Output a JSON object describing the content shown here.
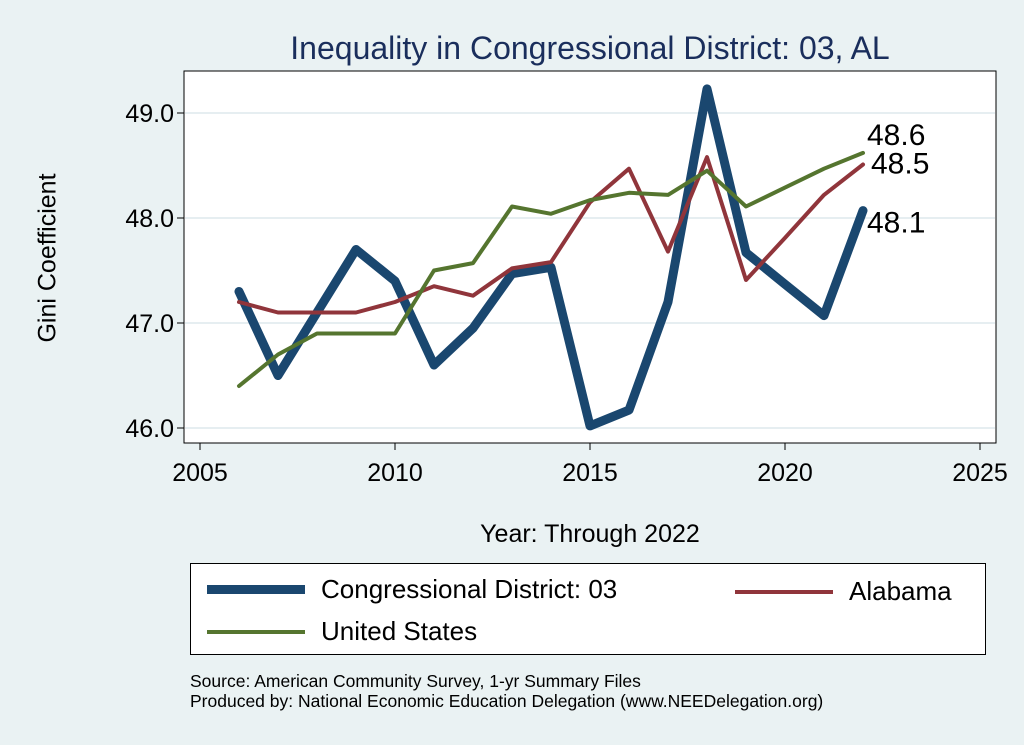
{
  "chart_data": {
    "type": "line",
    "title": "Inequality in Congressional District:  03, AL",
    "xlabel": "Year: Through 2022",
    "ylabel": "Gini Coefficient",
    "xlim": [
      2005,
      2025
    ],
    "ylim": [
      46.0,
      49.5
    ],
    "xticks": [
      2005,
      2010,
      2015,
      2020,
      2025
    ],
    "yticks": [
      46.0,
      47.0,
      48.0,
      49.0
    ],
    "xtick_labels": [
      "2005",
      "2010",
      "2015",
      "2020",
      "2025"
    ],
    "ytick_labels": [
      "46.0",
      "47.0",
      "48.0",
      "49.0"
    ],
    "grid": "horizontal",
    "legend_position": "bottom",
    "x": [
      2006,
      2007,
      2008,
      2009,
      2010,
      2011,
      2012,
      2013,
      2014,
      2015,
      2016,
      2017,
      2018,
      2019,
      2020,
      2021,
      2022
    ],
    "series": [
      {
        "name": "Congressional District:  03",
        "color": "#1a476f",
        "width": 9,
        "values": [
          47.3,
          46.5,
          47.1,
          47.7,
          47.4,
          46.6,
          46.95,
          47.47,
          47.53,
          46.02,
          46.17,
          47.2,
          49.23,
          47.67,
          47.37,
          47.07,
          48.07
        ],
        "end_label": "48.1"
      },
      {
        "name": "Alabama",
        "color": "#90353b",
        "width": 4,
        "values": [
          47.2,
          47.1,
          47.1,
          47.1,
          47.2,
          47.35,
          47.26,
          47.52,
          47.58,
          48.15,
          48.47,
          47.68,
          48.58,
          47.41,
          47.81,
          48.22,
          48.51
        ],
        "end_label": "48.5"
      },
      {
        "name": "United States",
        "color": "#55752f",
        "width": 4,
        "values": [
          46.4,
          46.7,
          46.9,
          46.9,
          46.9,
          47.5,
          47.57,
          48.11,
          48.04,
          48.17,
          48.24,
          48.22,
          48.45,
          48.11,
          48.29,
          48.47,
          48.62
        ],
        "end_label": "48.6"
      }
    ]
  },
  "source_lines": [
    "Source: American Community Survey, 1-yr Summary Files",
    "Produced by: National Economic Education Delegation (www.NEEDelegation.org)"
  ]
}
